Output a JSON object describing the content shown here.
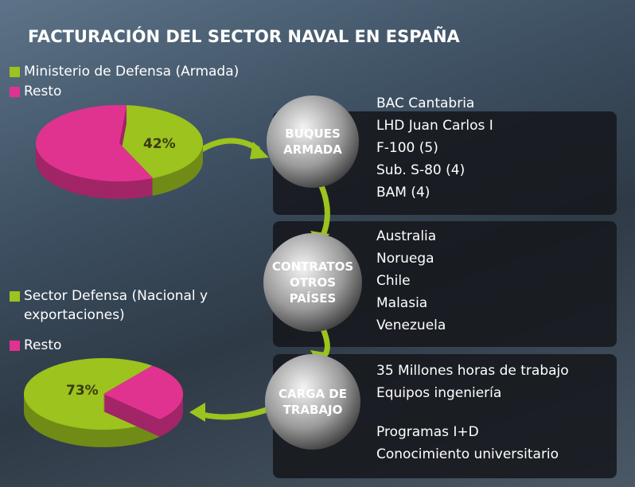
{
  "title": "FACTURACIÓN DEL SECTOR NAVAL EN ESPAÑA",
  "chart_data": [
    {
      "type": "pie",
      "categories": [
        "Ministerio de Defensa (Armada)",
        "Resto"
      ],
      "values": [
        42,
        58
      ],
      "value_labels": [
        "42%",
        null
      ],
      "colors": [
        "#9cc31e",
        "#e0338f"
      ]
    },
    {
      "type": "pie",
      "categories": [
        "Sector Defensa (Nacional y exportaciones)",
        "Resto"
      ],
      "values": [
        73,
        27
      ],
      "value_labels": [
        "73%",
        null
      ],
      "colors": [
        "#9cc31e",
        "#e0338f"
      ]
    }
  ],
  "flow": [
    {
      "label_lines": [
        "BUQUES",
        "ARMADA"
      ],
      "items": [
        "BAC Cantabria",
        "LHD Juan Carlos I",
        "F-100 (5)",
        "Sub. S-80 (4)",
        "BAM (4)"
      ]
    },
    {
      "label_lines": [
        "CONTRATOS",
        "OTROS",
        "PAÍSES"
      ],
      "items": [
        "Australia",
        "Noruega",
        "Chile",
        "Malasia",
        "Venezuela"
      ]
    },
    {
      "label_lines": [
        "CARGA DE",
        "TRABAJO"
      ],
      "items": [
        "35 Millones horas de trabajo",
        "Equipos ingeniería",
        "Programas I+D",
        "Conocimiento universitario"
      ]
    }
  ]
}
